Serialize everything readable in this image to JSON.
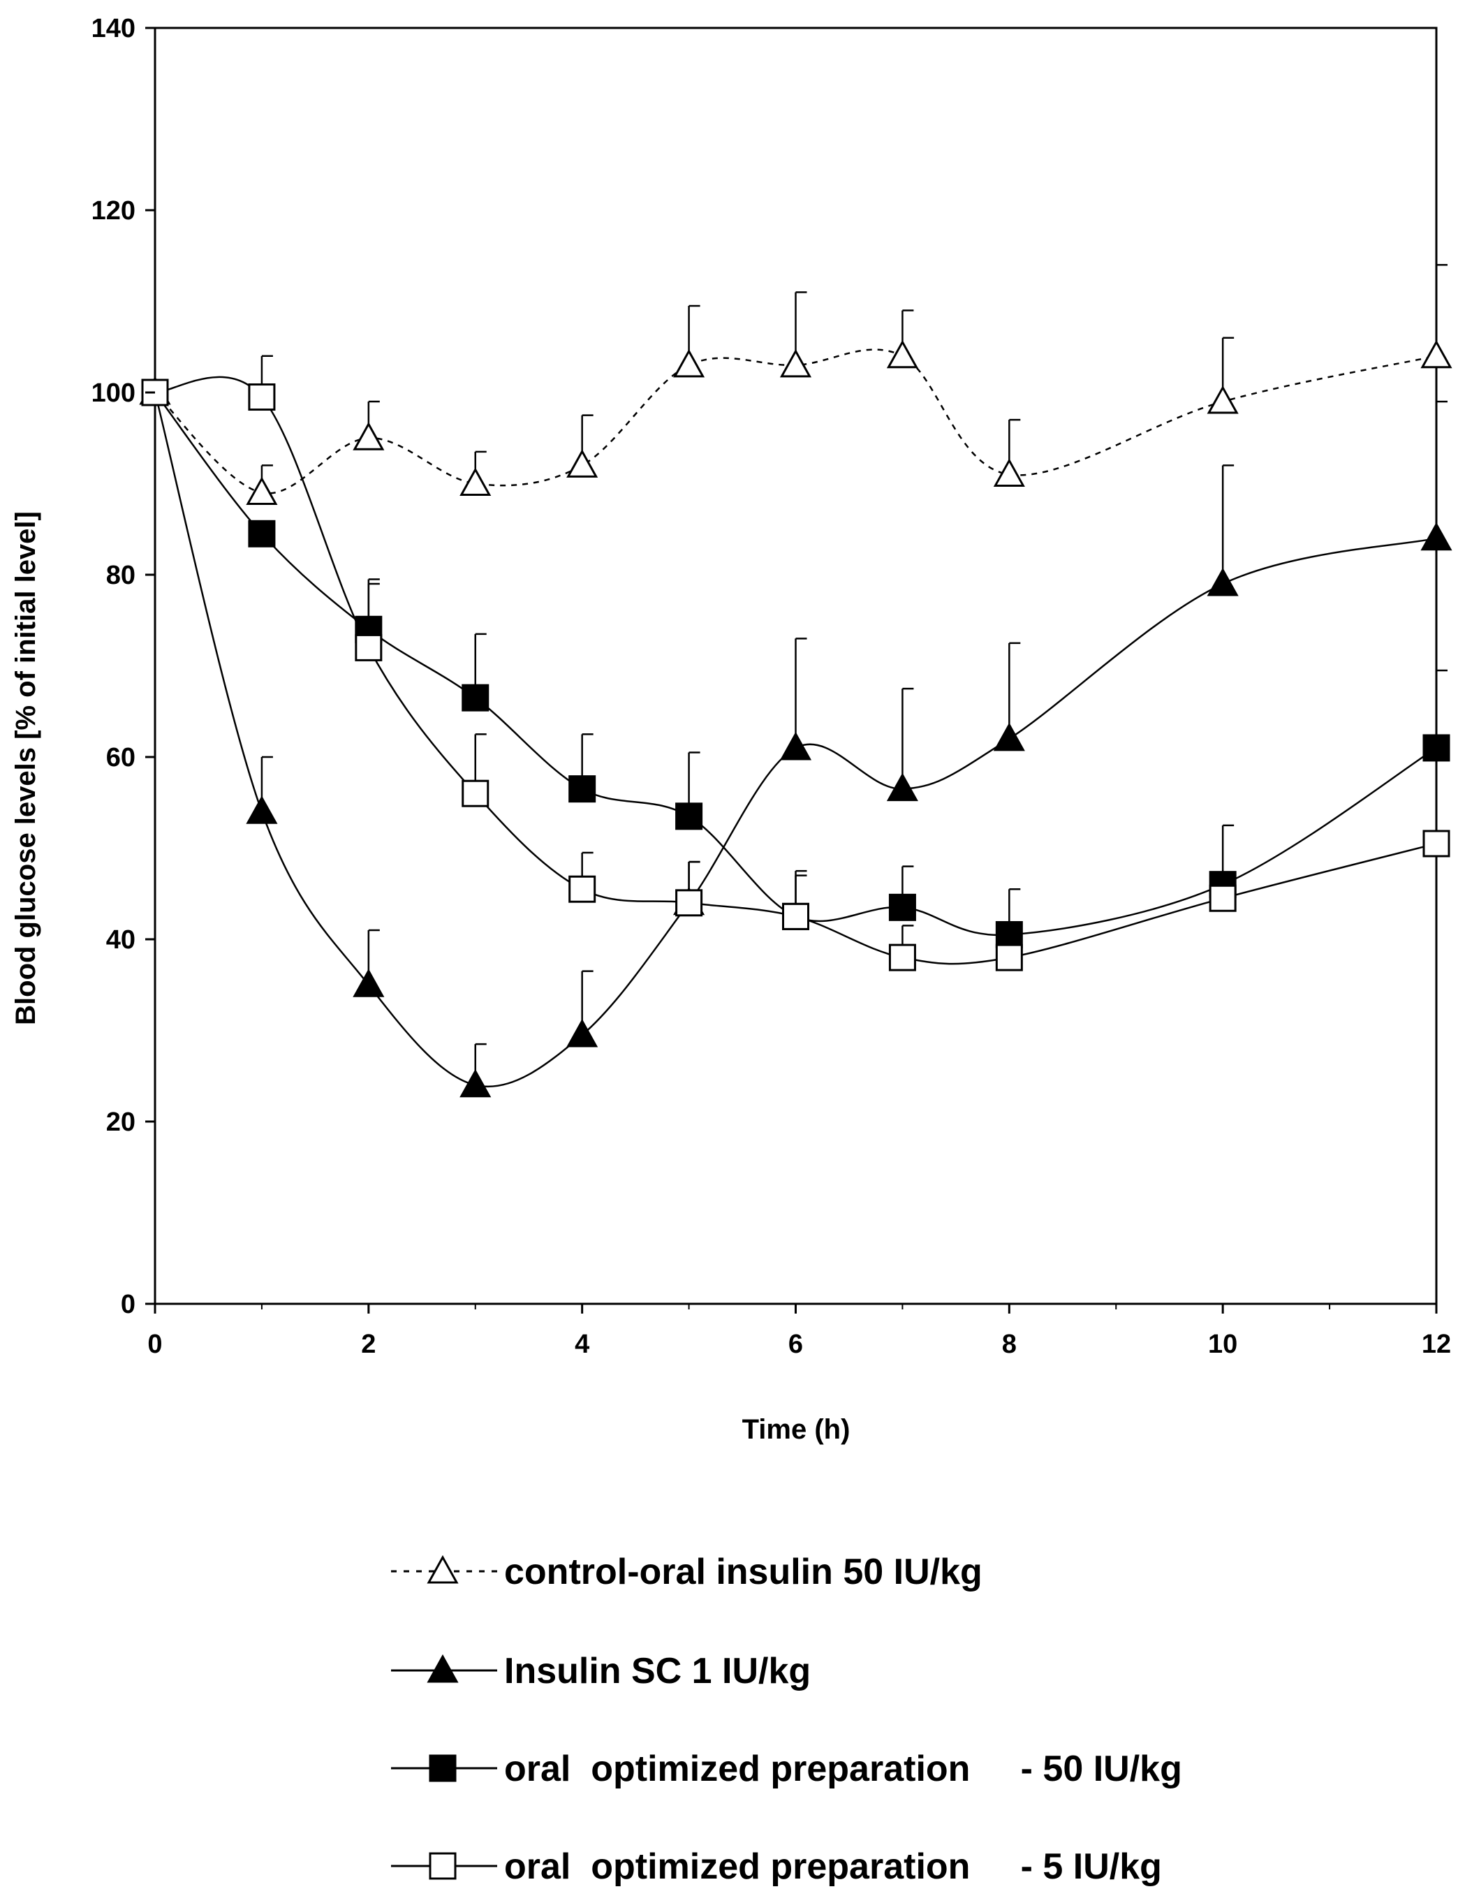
{
  "chart_data": {
    "type": "line",
    "title": "",
    "xlabel": "Time (h)",
    "ylabel": "Blood glucose levels [%  of initial level]",
    "xlim": [
      0,
      12
    ],
    "ylim": [
      0,
      140
    ],
    "xticks": [
      "0",
      "2",
      "4",
      "6",
      "8",
      "10",
      "12"
    ],
    "yticks": [
      "0",
      "20",
      "40",
      "60",
      "80",
      "100",
      "120",
      "140"
    ],
    "grid": false,
    "legend_position": "bottom",
    "series": [
      {
        "key": "control",
        "name": "control-oral insulin 50 IU/kg",
        "marker": "open-triangle",
        "line": "dotted",
        "x": [
          0,
          1,
          2,
          3,
          4,
          5,
          6,
          7,
          8,
          10,
          12
        ],
        "y": [
          100,
          89,
          95,
          90,
          92,
          103,
          103,
          104,
          91,
          99,
          104
        ],
        "err": [
          0,
          3,
          4,
          3.5,
          5.5,
          6.5,
          8,
          5,
          6,
          7,
          10
        ]
      },
      {
        "key": "sc",
        "name": "Insulin SC 1 IU/kg",
        "marker": "filled-triangle",
        "line": "solid",
        "x": [
          0,
          1,
          2,
          3,
          4,
          5,
          6,
          7,
          8,
          10,
          12
        ],
        "y": [
          100,
          54,
          35,
          24,
          29.5,
          44,
          61,
          56.5,
          62,
          79,
          84
        ],
        "err": [
          0,
          6,
          6,
          4.5,
          7,
          4.5,
          12,
          11,
          10.5,
          13,
          15
        ]
      },
      {
        "key": "oral50",
        "name": "oral  optimized preparation     - 50 IU/kg",
        "marker": "filled-square",
        "line": "solid",
        "x": [
          0,
          1,
          2,
          3,
          4,
          5,
          6,
          7,
          8,
          10,
          12
        ],
        "y": [
          100,
          84.5,
          74,
          66.5,
          56.5,
          53.5,
          42.5,
          43.5,
          40.5,
          46,
          61
        ],
        "err": [
          0,
          0,
          5.5,
          7,
          6,
          7,
          5,
          4.5,
          5,
          6.5,
          8.5
        ]
      },
      {
        "key": "oral5",
        "name": "oral  optimized preparation     - 5 IU/kg",
        "marker": "open-square",
        "line": "solid",
        "x": [
          0,
          1,
          2,
          3,
          4,
          5,
          6,
          7,
          8,
          10,
          12
        ],
        "y": [
          100,
          99.5,
          72,
          56,
          45.5,
          44,
          42.5,
          38,
          38,
          44.5,
          50.5
        ],
        "err": [
          0,
          4.5,
          7,
          6.5,
          4,
          4.5,
          4.5,
          3.5,
          3.5,
          2.5,
          0
        ]
      }
    ]
  }
}
